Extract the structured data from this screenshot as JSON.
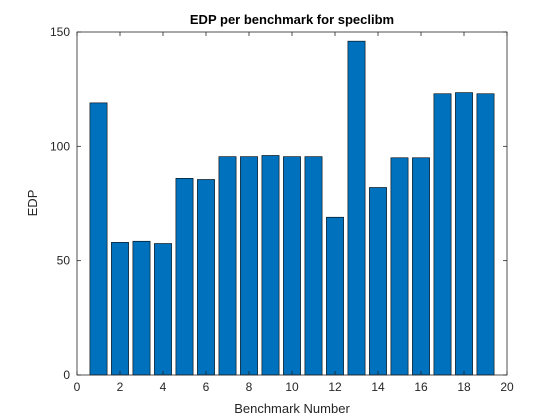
{
  "chart_data": {
    "type": "bar",
    "title": "EDP per benchmark for speclibm",
    "xlabel": "Benchmark Number",
    "ylabel": "EDP",
    "x": [
      1,
      2,
      3,
      4,
      5,
      6,
      7,
      8,
      9,
      10,
      11,
      12,
      13,
      14,
      15,
      16,
      17,
      18,
      19
    ],
    "values": [
      119,
      58,
      58.5,
      57.5,
      86,
      85.5,
      95.5,
      95.5,
      96,
      95.5,
      95.5,
      69,
      146,
      82,
      95,
      95,
      123,
      123.5,
      123
    ],
    "xlim": [
      0,
      20
    ],
    "ylim": [
      0,
      150
    ],
    "xticks": [
      0,
      2,
      4,
      6,
      8,
      10,
      12,
      14,
      16,
      18,
      20
    ],
    "yticks": [
      0,
      50,
      100,
      150
    ],
    "bar_color": "#0072bd",
    "bar_edge_color": "#000000",
    "grid": false,
    "box": true
  }
}
